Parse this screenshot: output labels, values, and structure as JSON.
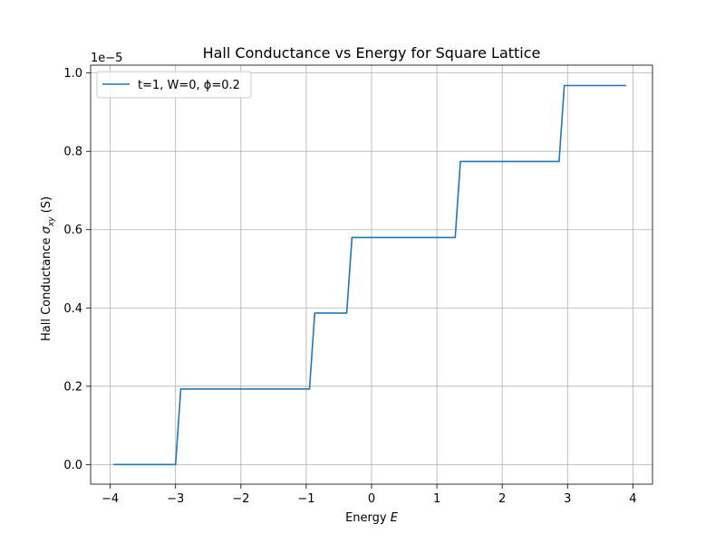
{
  "chart_data": {
    "type": "line",
    "title": "Hall Conductance vs Energy for Square Lattice",
    "xlabel_text": "Energy ",
    "xlabel_math": "E",
    "ylabel_text": "Hall Conductance ",
    "ylabel_sym": "σ",
    "ylabel_sub": "xy",
    "ylabel_unit": " (S)",
    "offset_label": "1e−5",
    "xlim": [
      -4.3,
      4.3
    ],
    "ylim": [
      -0.05,
      1.02
    ],
    "y_scale_exponent": -5,
    "xticks": [
      -4,
      -3,
      -2,
      -1,
      0,
      1,
      2,
      3,
      4
    ],
    "xtick_labels": [
      "−4",
      "−3",
      "−2",
      "−1",
      "0",
      "1",
      "2",
      "3",
      "4"
    ],
    "yticks": [
      0.0,
      0.2,
      0.4,
      0.6,
      0.8,
      1.0
    ],
    "ytick_labels": [
      "0.0",
      "0.2",
      "0.4",
      "0.6",
      "0.8",
      "1.0"
    ],
    "grid": true,
    "legend_position": "top-left",
    "series": [
      {
        "name": "t=1, W=0, ϕ=0.2",
        "color": "#1f77b4",
        "x": [
          -3.95,
          -3.0,
          -2.92,
          -0.95,
          -0.87,
          -0.38,
          -0.3,
          1.28,
          1.36,
          2.87,
          2.95,
          3.9
        ],
        "y": [
          0.0,
          0.0,
          0.193,
          0.193,
          0.387,
          0.387,
          0.58,
          0.58,
          0.774,
          0.774,
          0.968,
          0.968
        ]
      }
    ]
  }
}
